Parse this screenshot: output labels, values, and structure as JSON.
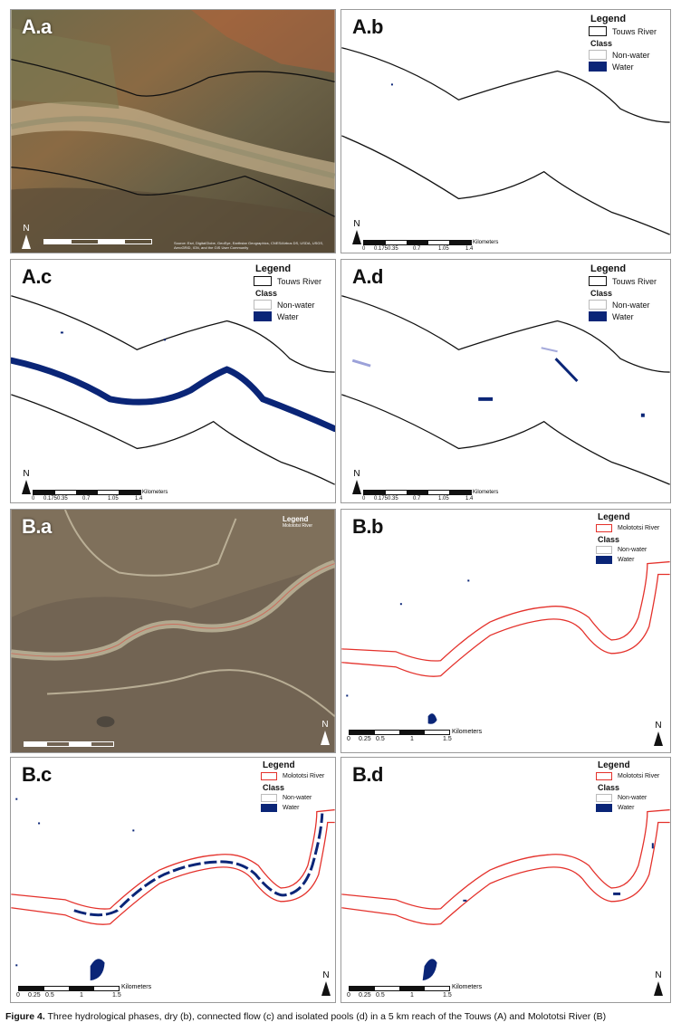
{
  "panels": {
    "aa": {
      "label": "A.a",
      "attribution": "Source: Esri, DigitalGlobe, GeoEye, Earthstar Geographics, CNES/Airbus DS, USDA, USGS, AeroGRID, IGN, and the GIS User Community"
    },
    "ab": {
      "label": "A.b"
    },
    "ac": {
      "label": "A.c"
    },
    "ad": {
      "label": "A.d"
    },
    "ba": {
      "label": "B.a",
      "legend_title": "Legend",
      "legend_river": "Molototsi River"
    },
    "bb": {
      "label": "B.b"
    },
    "bc": {
      "label": "B.c"
    },
    "bd": {
      "label": "B.d"
    }
  },
  "legend_touws": {
    "title": "Legend",
    "river": "Touws River",
    "class_title": "Class",
    "nonwater": "Non-water",
    "water": "Water"
  },
  "legend_molototsi": {
    "title": "Legend",
    "river": "Molototsi River",
    "class_title": "Class",
    "nonwater": "Non-water",
    "water": "Water"
  },
  "north_label": "N",
  "scale_touws": {
    "ticks": [
      "0",
      "0.175",
      "0.35",
      "0.7",
      "1.05",
      "1.4"
    ],
    "unit": "Kilometers"
  },
  "scale_molototsi": {
    "ticks": [
      "0",
      "0.25",
      "0.5",
      "1",
      "1.5"
    ],
    "unit": "Kilometers"
  },
  "caption": {
    "prefix": "Figure 4.",
    "text": " Three hydrological phases, dry (b), connected flow (c) and isolated pools (d) in a 5 km reach of the Touws (A) and Molototsi River (B)"
  },
  "colors": {
    "water": "#0a2577",
    "touws_outline": "#111111",
    "molototsi_outline": "#e4312b"
  }
}
